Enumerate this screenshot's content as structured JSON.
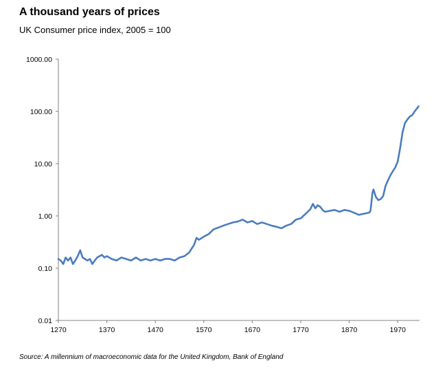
{
  "title": "A thousand years of prices",
  "subtitle": "UK Consumer price index, 2005 = 100",
  "source": "Source: A millennium of macroeconomic data for the United Kingdom, Bank of England",
  "chart_data": {
    "type": "line",
    "title": "A thousand years of prices",
    "subtitle": "UK Consumer price index, 2005 = 100",
    "xlabel": "",
    "ylabel": "",
    "yscale": "log",
    "xlim": [
      1270,
      2015
    ],
    "ylim": [
      0.01,
      1000
    ],
    "x_ticks": [
      1270,
      1370,
      1470,
      1570,
      1670,
      1770,
      1870,
      1970
    ],
    "x_tick_labels": [
      "1270",
      "1370",
      "1470",
      "1570",
      "1670",
      "1770",
      "1870",
      "1970"
    ],
    "y_ticks": [
      0.01,
      0.1,
      1,
      10,
      100,
      1000
    ],
    "y_tick_labels": [
      "0.01",
      "0.10",
      "1.00",
      "10.00",
      "100.00",
      "1000.00"
    ],
    "grid": false,
    "legend": "none",
    "color": "#4a7cbf",
    "series": [
      {
        "x": [
          1270,
          1275,
          1280,
          1285,
          1290,
          1295,
          1300,
          1305,
          1310,
          1315,
          1320,
          1325,
          1330,
          1335,
          1340,
          1345,
          1350,
          1355,
          1360,
          1365,
          1370,
          1375,
          1380,
          1390,
          1400,
          1410,
          1420,
          1430,
          1440,
          1450,
          1460,
          1470,
          1480,
          1490,
          1500,
          1510,
          1520,
          1530,
          1540,
          1550,
          1555,
          1560,
          1570,
          1580,
          1590,
          1600,
          1610,
          1620,
          1630,
          1640,
          1650,
          1660,
          1670,
          1680,
          1690,
          1700,
          1710,
          1720,
          1730,
          1740,
          1750,
          1760,
          1770,
          1780,
          1790,
          1795,
          1800,
          1805,
          1810,
          1815,
          1820,
          1830,
          1840,
          1850,
          1860,
          1870,
          1880,
          1890,
          1900,
          1910,
          1913,
          1914,
          1918,
          1920,
          1925,
          1930,
          1935,
          1940,
          1945,
          1950,
          1955,
          1960,
          1965,
          1970,
          1975,
          1980,
          1985,
          1990,
          1995,
          2000,
          2005,
          2010,
          2013
        ],
        "values": [
          0.15,
          0.14,
          0.12,
          0.16,
          0.14,
          0.16,
          0.12,
          0.14,
          0.17,
          0.22,
          0.16,
          0.15,
          0.14,
          0.15,
          0.12,
          0.14,
          0.16,
          0.17,
          0.18,
          0.16,
          0.17,
          0.16,
          0.15,
          0.14,
          0.16,
          0.15,
          0.14,
          0.16,
          0.14,
          0.15,
          0.14,
          0.15,
          0.14,
          0.15,
          0.15,
          0.14,
          0.16,
          0.17,
          0.2,
          0.28,
          0.38,
          0.35,
          0.4,
          0.45,
          0.55,
          0.6,
          0.65,
          0.7,
          0.75,
          0.78,
          0.85,
          0.75,
          0.8,
          0.7,
          0.75,
          0.7,
          0.65,
          0.62,
          0.58,
          0.65,
          0.7,
          0.85,
          0.9,
          1.1,
          1.35,
          1.7,
          1.4,
          1.6,
          1.5,
          1.3,
          1.2,
          1.25,
          1.3,
          1.2,
          1.3,
          1.25,
          1.15,
          1.05,
          1.1,
          1.15,
          1.2,
          1.3,
          2.8,
          3.2,
          2.3,
          2.0,
          2.1,
          2.4,
          3.8,
          4.8,
          6.0,
          7.2,
          8.5,
          11.0,
          20.0,
          40.0,
          60.0,
          70.0,
          80.0,
          85.0,
          100.0,
          115.0,
          125.0
        ]
      }
    ]
  }
}
